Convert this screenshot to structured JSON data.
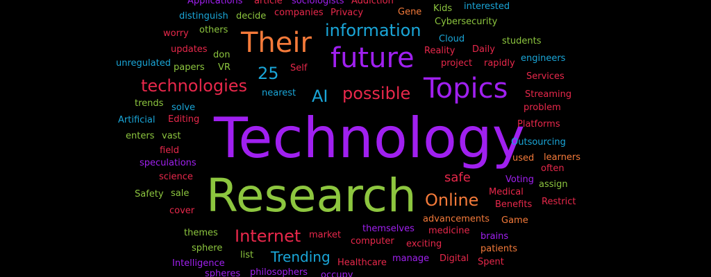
{
  "palette": {
    "purple": "#a020f0",
    "violet": "#8a2be2",
    "green": "#8dc63f",
    "orange": "#f47a3a",
    "red": "#e8284b",
    "blue": "#1aa6d8",
    "background": "#000000"
  },
  "words": [
    {
      "text": "Technology",
      "color": "purple"
    },
    {
      "text": "Research",
      "color": "green"
    },
    {
      "text": "Topics",
      "color": "purple"
    },
    {
      "text": "Their",
      "color": "orange"
    },
    {
      "text": "future",
      "color": "purple"
    },
    {
      "text": "information",
      "color": "blue"
    },
    {
      "text": "technologies",
      "color": "red"
    },
    {
      "text": "possible",
      "color": "red"
    },
    {
      "text": "AI",
      "color": "blue"
    },
    {
      "text": "25",
      "color": "blue"
    },
    {
      "text": "Online",
      "color": "orange"
    },
    {
      "text": "Internet",
      "color": "red"
    },
    {
      "text": "Trending",
      "color": "blue"
    },
    {
      "text": "safe",
      "color": "red"
    },
    {
      "text": "Applications",
      "color": "purple"
    },
    {
      "text": "article",
      "color": "red"
    },
    {
      "text": "sociologists",
      "color": "purple"
    },
    {
      "text": "Addiction",
      "color": "red"
    },
    {
      "text": "distinguish",
      "color": "blue"
    },
    {
      "text": "decide",
      "color": "green"
    },
    {
      "text": "companies",
      "color": "red"
    },
    {
      "text": "Privacy",
      "color": "red"
    },
    {
      "text": "Gene",
      "color": "orange"
    },
    {
      "text": "Kids",
      "color": "green"
    },
    {
      "text": "interested",
      "color": "blue"
    },
    {
      "text": "Cybersecurity",
      "color": "green"
    },
    {
      "text": "worry",
      "color": "red"
    },
    {
      "text": "others",
      "color": "green"
    },
    {
      "text": "Cloud",
      "color": "blue"
    },
    {
      "text": "students",
      "color": "green"
    },
    {
      "text": "updates",
      "color": "red"
    },
    {
      "text": "Reality",
      "color": "red"
    },
    {
      "text": "Daily",
      "color": "red"
    },
    {
      "text": "don",
      "color": "green"
    },
    {
      "text": "engineers",
      "color": "blue"
    },
    {
      "text": "unregulated",
      "color": "blue"
    },
    {
      "text": "papers",
      "color": "green"
    },
    {
      "text": "VR",
      "color": "green"
    },
    {
      "text": "Self",
      "color": "red"
    },
    {
      "text": "project",
      "color": "red"
    },
    {
      "text": "rapidly",
      "color": "red"
    },
    {
      "text": "Services",
      "color": "red"
    },
    {
      "text": "nearest",
      "color": "blue"
    },
    {
      "text": "Streaming",
      "color": "red"
    },
    {
      "text": "trends",
      "color": "green"
    },
    {
      "text": "solve",
      "color": "blue"
    },
    {
      "text": "problem",
      "color": "red"
    },
    {
      "text": "Artificial",
      "color": "blue"
    },
    {
      "text": "Editing",
      "color": "red"
    },
    {
      "text": "Platforms",
      "color": "red"
    },
    {
      "text": "enters",
      "color": "green"
    },
    {
      "text": "vast",
      "color": "green"
    },
    {
      "text": "Outsourcing",
      "color": "blue"
    },
    {
      "text": "field",
      "color": "red"
    },
    {
      "text": "used",
      "color": "orange"
    },
    {
      "text": "learners",
      "color": "orange"
    },
    {
      "text": "speculations",
      "color": "purple"
    },
    {
      "text": "often",
      "color": "red"
    },
    {
      "text": "science",
      "color": "red"
    },
    {
      "text": "Voting",
      "color": "purple"
    },
    {
      "text": "assign",
      "color": "green"
    },
    {
      "text": "Safety",
      "color": "green"
    },
    {
      "text": "sale",
      "color": "green"
    },
    {
      "text": "Medical",
      "color": "red"
    },
    {
      "text": "Benefits",
      "color": "red"
    },
    {
      "text": "Restrict",
      "color": "red"
    },
    {
      "text": "cover",
      "color": "red"
    },
    {
      "text": "advancements",
      "color": "orange"
    },
    {
      "text": "Game",
      "color": "orange"
    },
    {
      "text": "themes",
      "color": "green"
    },
    {
      "text": "themselves",
      "color": "purple"
    },
    {
      "text": "medicine",
      "color": "red"
    },
    {
      "text": "market",
      "color": "red"
    },
    {
      "text": "brains",
      "color": "purple"
    },
    {
      "text": "computer",
      "color": "red"
    },
    {
      "text": "exciting",
      "color": "red"
    },
    {
      "text": "sphere",
      "color": "green"
    },
    {
      "text": "patients",
      "color": "orange"
    },
    {
      "text": "list",
      "color": "green"
    },
    {
      "text": "manage",
      "color": "purple"
    },
    {
      "text": "Digital",
      "color": "red"
    },
    {
      "text": "Intelligence",
      "color": "purple"
    },
    {
      "text": "Healthcare",
      "color": "red"
    },
    {
      "text": "Spent",
      "color": "red"
    },
    {
      "text": "spheres",
      "color": "purple"
    },
    {
      "text": "philosophers",
      "color": "purple"
    },
    {
      "text": "occupy",
      "color": "purple"
    }
  ]
}
